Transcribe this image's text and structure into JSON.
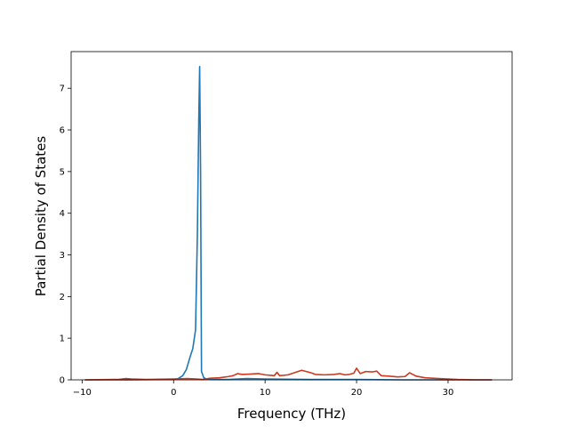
{
  "chart_data": {
    "type": "line",
    "title": "",
    "xlabel": "Frequency (THz)",
    "ylabel": "Partial Density of States",
    "xlim": [
      -11.2,
      37.0
    ],
    "ylim": [
      0,
      7.88
    ],
    "xticks": [
      -10,
      0,
      10,
      20,
      30
    ],
    "yticks": [
      0,
      1,
      2,
      3,
      4,
      5,
      6,
      7
    ],
    "grid": false,
    "legend": "none",
    "series": [
      {
        "color": "#1f77b4",
        "x": [
          -9.7,
          -5,
          0,
          0.5,
          1.0,
          1.4,
          1.8,
          2.1,
          2.4,
          2.6,
          2.75,
          2.85,
          2.95,
          3.05,
          3.3,
          3.6,
          4.5,
          6,
          8,
          10,
          15,
          20,
          25,
          30,
          34.8
        ],
        "y": [
          0,
          0,
          0.01,
          0.03,
          0.1,
          0.25,
          0.55,
          0.75,
          1.2,
          3.5,
          6.2,
          7.52,
          5.0,
          0.2,
          0.05,
          0.02,
          0.01,
          0.01,
          0.03,
          0.02,
          0.01,
          0.01,
          0.0,
          0.0,
          0.0
        ]
      },
      {
        "color": "#cc3a1f",
        "x": [
          -9.7,
          -6,
          -5.2,
          -4.6,
          -3,
          0,
          1.5,
          2.5,
          3.2,
          4,
          5,
          6,
          6.5,
          7.0,
          7.5,
          8.5,
          9.3,
          10,
          10.5,
          11,
          11.3,
          11.6,
          12.5,
          13.2,
          14.0,
          15,
          15.5,
          16.5,
          17.5,
          18.2,
          18.7,
          19.2,
          19.7,
          20.0,
          20.4,
          21,
          21.7,
          22.2,
          22.7,
          23.5,
          24.5,
          25.3,
          25.8,
          26.5,
          27.5,
          29,
          31,
          33,
          34.8
        ],
        "y": [
          0,
          0.01,
          0.03,
          0.02,
          0.01,
          0.02,
          0.03,
          0.02,
          0.01,
          0.04,
          0.05,
          0.08,
          0.1,
          0.15,
          0.13,
          0.14,
          0.15,
          0.12,
          0.11,
          0.1,
          0.18,
          0.1,
          0.12,
          0.17,
          0.23,
          0.17,
          0.13,
          0.12,
          0.13,
          0.15,
          0.12,
          0.13,
          0.16,
          0.28,
          0.15,
          0.2,
          0.19,
          0.21,
          0.1,
          0.09,
          0.07,
          0.08,
          0.17,
          0.09,
          0.05,
          0.03,
          0.01,
          0.0,
          0.0
        ]
      }
    ]
  }
}
